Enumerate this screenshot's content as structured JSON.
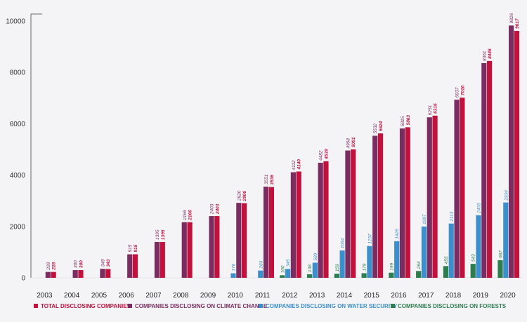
{
  "chart_data": {
    "type": "bar",
    "categories": [
      "2003",
      "2004",
      "2005",
      "2006",
      "2007",
      "2008",
      "2009",
      "2010",
      "2011",
      "2012",
      "2013",
      "2014",
      "2015",
      "2016",
      "2017",
      "2018",
      "2019",
      "2020"
    ],
    "ylim": [
      0,
      10000
    ],
    "yticks": [
      0,
      2000,
      4000,
      6000,
      8000,
      10000
    ],
    "grid": false,
    "legend_position": "bottom",
    "series": [
      {
        "name": "COMPANIES DISCLOSING ON FORESTS",
        "color": "#2e7d4f",
        "values": [
          null,
          null,
          null,
          null,
          null,
          null,
          null,
          null,
          null,
          100,
          138,
          159,
          179,
          199,
          264,
          455,
          543,
          687
        ],
        "labels": [
          "",
          "",
          "",
          "",
          "",
          "",
          "",
          "",
          "",
          "100",
          "138",
          "159",
          "179",
          "199",
          "264",
          "455",
          "543",
          "687"
        ]
      },
      {
        "name": "COMPANIES DISCLOSING ON WATER SECURITY",
        "color": "#3d8fcc",
        "values": [
          null,
          null,
          null,
          null,
          null,
          null,
          null,
          176,
          283,
          345,
          589,
          1064,
          1237,
          1426,
          1997,
          2113,
          2435,
          2934
        ],
        "labels": [
          "",
          "",
          "",
          "",
          "",
          "",
          "",
          "176",
          "283",
          "345",
          "589",
          "1064",
          "1237",
          "1426",
          "1997",
          "2113",
          "2435",
          "2934"
        ]
      },
      {
        "name": "COMPANIES DISCLOSING ON CLIMATE CHANGE",
        "color": "#7b2d62",
        "values": [
          228,
          300,
          349,
          915,
          1395,
          2166,
          2403,
          2920,
          3551,
          4112,
          4482,
          4958,
          5532,
          5815,
          6251,
          6937,
          8361,
          9826
        ],
        "labels": [
          "228",
          "300",
          "349",
          "915",
          "1395",
          "2166",
          "2403",
          "2920",
          "3551",
          "4112",
          "4482",
          "4958",
          "5532",
          "5815",
          "6251",
          "6937",
          "8361",
          "9826"
        ]
      },
      {
        "name": "TOTAL DISCLOSING COMPANIES",
        "color": "#c0123d",
        "values": [
          228,
          300,
          343,
          915,
          1395,
          2166,
          2403,
          2906,
          3536,
          4140,
          4539,
          5001,
          5624,
          5863,
          6316,
          7016,
          8446,
          9617
        ],
        "labels": [
          "228",
          "300",
          "343",
          "915",
          "1395",
          "2166",
          "2403",
          "2906",
          "3536",
          "4140",
          "4539",
          "5001",
          "5624",
          "5863",
          "6316",
          "7016",
          "8446",
          "9617"
        ]
      }
    ],
    "legend": [
      {
        "label": "TOTAL DISCLOSING COMPANIES",
        "color": "#c0123d"
      },
      {
        "label": "COMPANIES DISCLOSING ON CLIMATE CHANGE",
        "color": "#7b2d62"
      },
      {
        "label": "COMPANIES DISCLOSING ON WATER SECURITY",
        "color": "#3d8fcc"
      },
      {
        "label": "COMPANIES DISCLOSING ON FORESTS",
        "color": "#2e7d4f"
      }
    ]
  }
}
